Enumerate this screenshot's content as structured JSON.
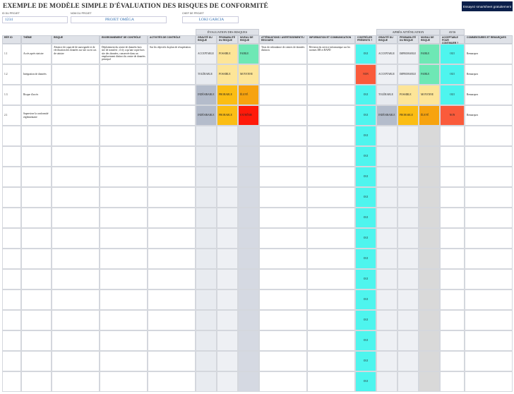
{
  "header": {
    "title": "EXEMPLE DE MODÈLE SIMPLE D'ÉVALUATION DES RISQUES DE CONFORMITÉ",
    "logo": "Essayez smartsheet gratuitement",
    "fields": [
      {
        "label": "ID DU PROJET",
        "value": "1234"
      },
      {
        "label": "NOM DU PROJET",
        "value": "PROJET OMÉGA"
      },
      {
        "label": "CHEF DE PROJET",
        "value": "LOKI GARCIA"
      }
    ]
  },
  "table": {
    "groups": [
      {
        "label": "ÉVALUATION DES RISQUES",
        "from": 5,
        "to": 7
      },
      {
        "label": "APRÈS ATTÉNUATION",
        "from": 11,
        "to": 13
      },
      {
        "label": "AVIS",
        "from": 14,
        "to": 14
      }
    ],
    "columns": [
      "RÉF. ID",
      "THÈME",
      "RISQUE",
      "ENVIRONNEMENT DE CONTRÔLE",
      "ACTIVITÉS DE CONTRÔLE",
      "GRAVITÉ DU RISQUE",
      "PROBABILITÉ DU RISQUE",
      "NIVEAU DE RISQUE",
      "ATTÉNUATIONS / AVERTISSEMENTS / RECOURS",
      "INFORMATION ET COMMUNICATION",
      "CONTRÔLES PRÉSENTS ?",
      "GRAVITÉ DU RISQUE",
      "PROBABILITÉ DU RISQUE",
      "NIVEAU DE RISQUE",
      "ACCEPTABLE POUR CONTINUER ?",
      "COMMENTAIRES ET REMARQUES"
    ],
    "level_colors": {
      "ACCEPTABLE": "#eef0f4",
      "TOLÉRABLE": "#e8ebf0",
      "INDÉSIRABLE": "#b4bccb",
      "IMPROBABLE": "#eef0f4",
      "POSSIBLE": "#fde598",
      "PROBABLE": "#fbbd14",
      "FAIBLE": "#6ee8b5",
      "MOYENNE": "#fde598",
      "ÉLEVÉ": "#f7a30f",
      "EXTRÊME": "#ff1a0a",
      "OUI": "#4ef5ee",
      "NON": "#fa5b3b"
    },
    "rows": [
      [
        "1.1",
        "Accès après sinistre",
        "Absence de capacité de sauvegarde et de vérification des données sur site ou en cas de sinistre",
        "Déploiement du centre de données hors site de transfert ; il n'y a qu'une copie hors site des données, conservée dans un emplacement distinct du centre de données principal",
        "Sur les objectifs du plan de récupération.",
        "ACCEPTABLE",
        "POSSIBLE",
        "FAIBLE",
        "Tests de redondance de centres de données distincts",
        "Révision du service informatique sur les normes DR et BAPD",
        "OUI",
        "ACCEPTABLE",
        "IMPROBABLE",
        "FAIBLE",
        "OUI",
        "Remarques"
      ],
      [
        "1.2",
        "Intégration de données",
        null,
        null,
        null,
        "TOLÉRABLE",
        "POSSIBLE",
        "MOYENNE",
        null,
        null,
        "NON",
        "ACCEPTABLE",
        "IMPROBABLE",
        "FAIBLE",
        "OUI",
        "Remarques"
      ],
      [
        "1.3",
        "Risque d'accès",
        null,
        null,
        null,
        "INDÉSIRABLE",
        "PROBABLE",
        "ÉLEVÉ",
        null,
        null,
        "OUI",
        "TOLÉRABLE",
        "POSSIBLE",
        "MOYENNE",
        "OUI",
        "Remarques"
      ],
      [
        "2.1",
        "Superviser la conformité réglementaire",
        null,
        null,
        null,
        "INDÉSIRABLE",
        "PROBABLE",
        "EXTRÊME",
        null,
        null,
        "OUI",
        "INDÉSIRABLE",
        "PROBABLE",
        "ÉLEVÉ",
        "NON",
        "Remarques"
      ],
      [
        null,
        null,
        null,
        null,
        null,
        null,
        null,
        null,
        null,
        null,
        "OUI",
        null,
        null,
        null,
        null,
        null
      ],
      [
        null,
        null,
        null,
        null,
        null,
        null,
        null,
        null,
        null,
        null,
        "OUI",
        null,
        null,
        null,
        null,
        null
      ],
      [
        null,
        null,
        null,
        null,
        null,
        null,
        null,
        null,
        null,
        null,
        "OUI",
        null,
        null,
        null,
        null,
        null
      ],
      [
        null,
        null,
        null,
        null,
        null,
        null,
        null,
        null,
        null,
        null,
        "OUI",
        null,
        null,
        null,
        null,
        null
      ],
      [
        null,
        null,
        null,
        null,
        null,
        null,
        null,
        null,
        null,
        null,
        "OUI",
        null,
        null,
        null,
        null,
        null
      ],
      [
        null,
        null,
        null,
        null,
        null,
        null,
        null,
        null,
        null,
        null,
        "OUI",
        null,
        null,
        null,
        null,
        null
      ],
      [
        null,
        null,
        null,
        null,
        null,
        null,
        null,
        null,
        null,
        null,
        "OUI",
        null,
        null,
        null,
        null,
        null
      ],
      [
        null,
        null,
        null,
        null,
        null,
        null,
        null,
        null,
        null,
        null,
        "OUI",
        null,
        null,
        null,
        null,
        null
      ],
      [
        null,
        null,
        null,
        null,
        null,
        null,
        null,
        null,
        null,
        null,
        "OUI",
        null,
        null,
        null,
        null,
        null
      ],
      [
        null,
        null,
        null,
        null,
        null,
        null,
        null,
        null,
        null,
        null,
        "OUI",
        null,
        null,
        null,
        null,
        null
      ],
      [
        null,
        null,
        null,
        null,
        null,
        null,
        null,
        null,
        null,
        null,
        "OUI",
        null,
        null,
        null,
        null,
        null
      ],
      [
        null,
        null,
        null,
        null,
        null,
        null,
        null,
        null,
        null,
        null,
        "OUI",
        null,
        null,
        null,
        null,
        null
      ],
      [
        null,
        null,
        null,
        null,
        null,
        null,
        null,
        null,
        null,
        null,
        "OUI",
        null,
        null,
        null,
        null,
        null
      ]
    ]
  }
}
